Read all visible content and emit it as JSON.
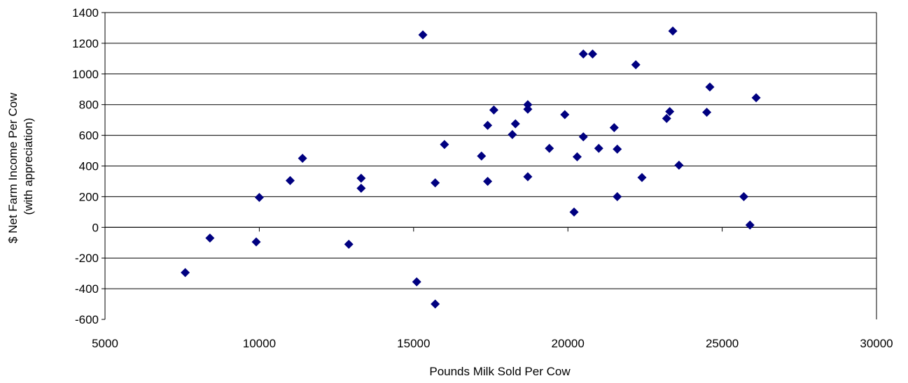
{
  "chart_data": {
    "type": "scatter",
    "title": "",
    "xlabel": "Pounds Milk Sold Per Cow",
    "ylabel_line1": "$ Net Farm Income Per Cow",
    "ylabel_line2": "(with appreciation)",
    "xlim": [
      5000,
      30000
    ],
    "ylim": [
      -600,
      1400
    ],
    "x_ticks": [
      5000,
      10000,
      15000,
      20000,
      25000,
      30000
    ],
    "y_ticks": [
      -600,
      -400,
      -200,
      0,
      200,
      400,
      600,
      800,
      1000,
      1200,
      1400
    ],
    "grid": "horizontal",
    "legend": "none",
    "marker": "diamond",
    "marker_color": "#000080",
    "series": [
      {
        "x": [
          7600,
          8400,
          9900,
          10000,
          11000,
          11400,
          12900,
          13300,
          13300,
          15100,
          15300,
          15700,
          15700,
          16000,
          17200,
          17400,
          17400,
          17600,
          18200,
          18300,
          18700,
          18700,
          18700,
          19400,
          19900,
          20200,
          20300,
          20500,
          20500,
          20800,
          21000,
          21500,
          21600,
          21600,
          22200,
          22400,
          23200,
          23300,
          23400,
          23600,
          24500,
          24600,
          25700,
          25900,
          26100
        ],
        "y": [
          -295,
          -70,
          -95,
          195,
          305,
          450,
          -110,
          320,
          255,
          -355,
          1255,
          290,
          -500,
          540,
          465,
          300,
          665,
          765,
          605,
          675,
          800,
          770,
          330,
          515,
          735,
          100,
          460,
          590,
          1130,
          1130,
          515,
          650,
          200,
          510,
          1060,
          325,
          710,
          755,
          1280,
          405,
          750,
          915,
          200,
          15,
          845
        ]
      }
    ]
  }
}
